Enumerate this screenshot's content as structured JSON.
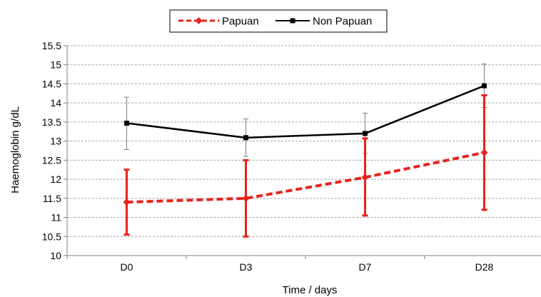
{
  "chart_data": {
    "type": "line",
    "categories": [
      "D0",
      "D3",
      "D7",
      "D28"
    ],
    "xlabel": "Time / days",
    "ylabel": "Haemoglobin  g/dL",
    "ylim": [
      10,
      15.5
    ],
    "yticks": [
      "10",
      "10.5",
      "11",
      "11.5",
      "12",
      "12.5",
      "13",
      "13.5",
      "14",
      "14.5",
      "15",
      "15.5"
    ],
    "grid": true,
    "legend_position": "top-center",
    "series": [
      {
        "name": "Papuan",
        "values": [
          11.4,
          11.5,
          12.05,
          12.7
        ],
        "error_low": [
          10.55,
          10.5,
          11.05,
          11.2
        ],
        "error_high": [
          12.25,
          12.5,
          13.07,
          14.2
        ],
        "color": "#e8221c",
        "line_style": "dashed",
        "marker": "diamond"
      },
      {
        "name": "Non Papuan",
        "values": [
          13.47,
          13.09,
          13.2,
          14.45
        ],
        "error_low": [
          12.78,
          12.6,
          12.68,
          13.88
        ],
        "error_high": [
          14.15,
          13.58,
          13.73,
          15.02
        ],
        "color": "#000000",
        "line_style": "solid",
        "marker": "square"
      }
    ]
  }
}
